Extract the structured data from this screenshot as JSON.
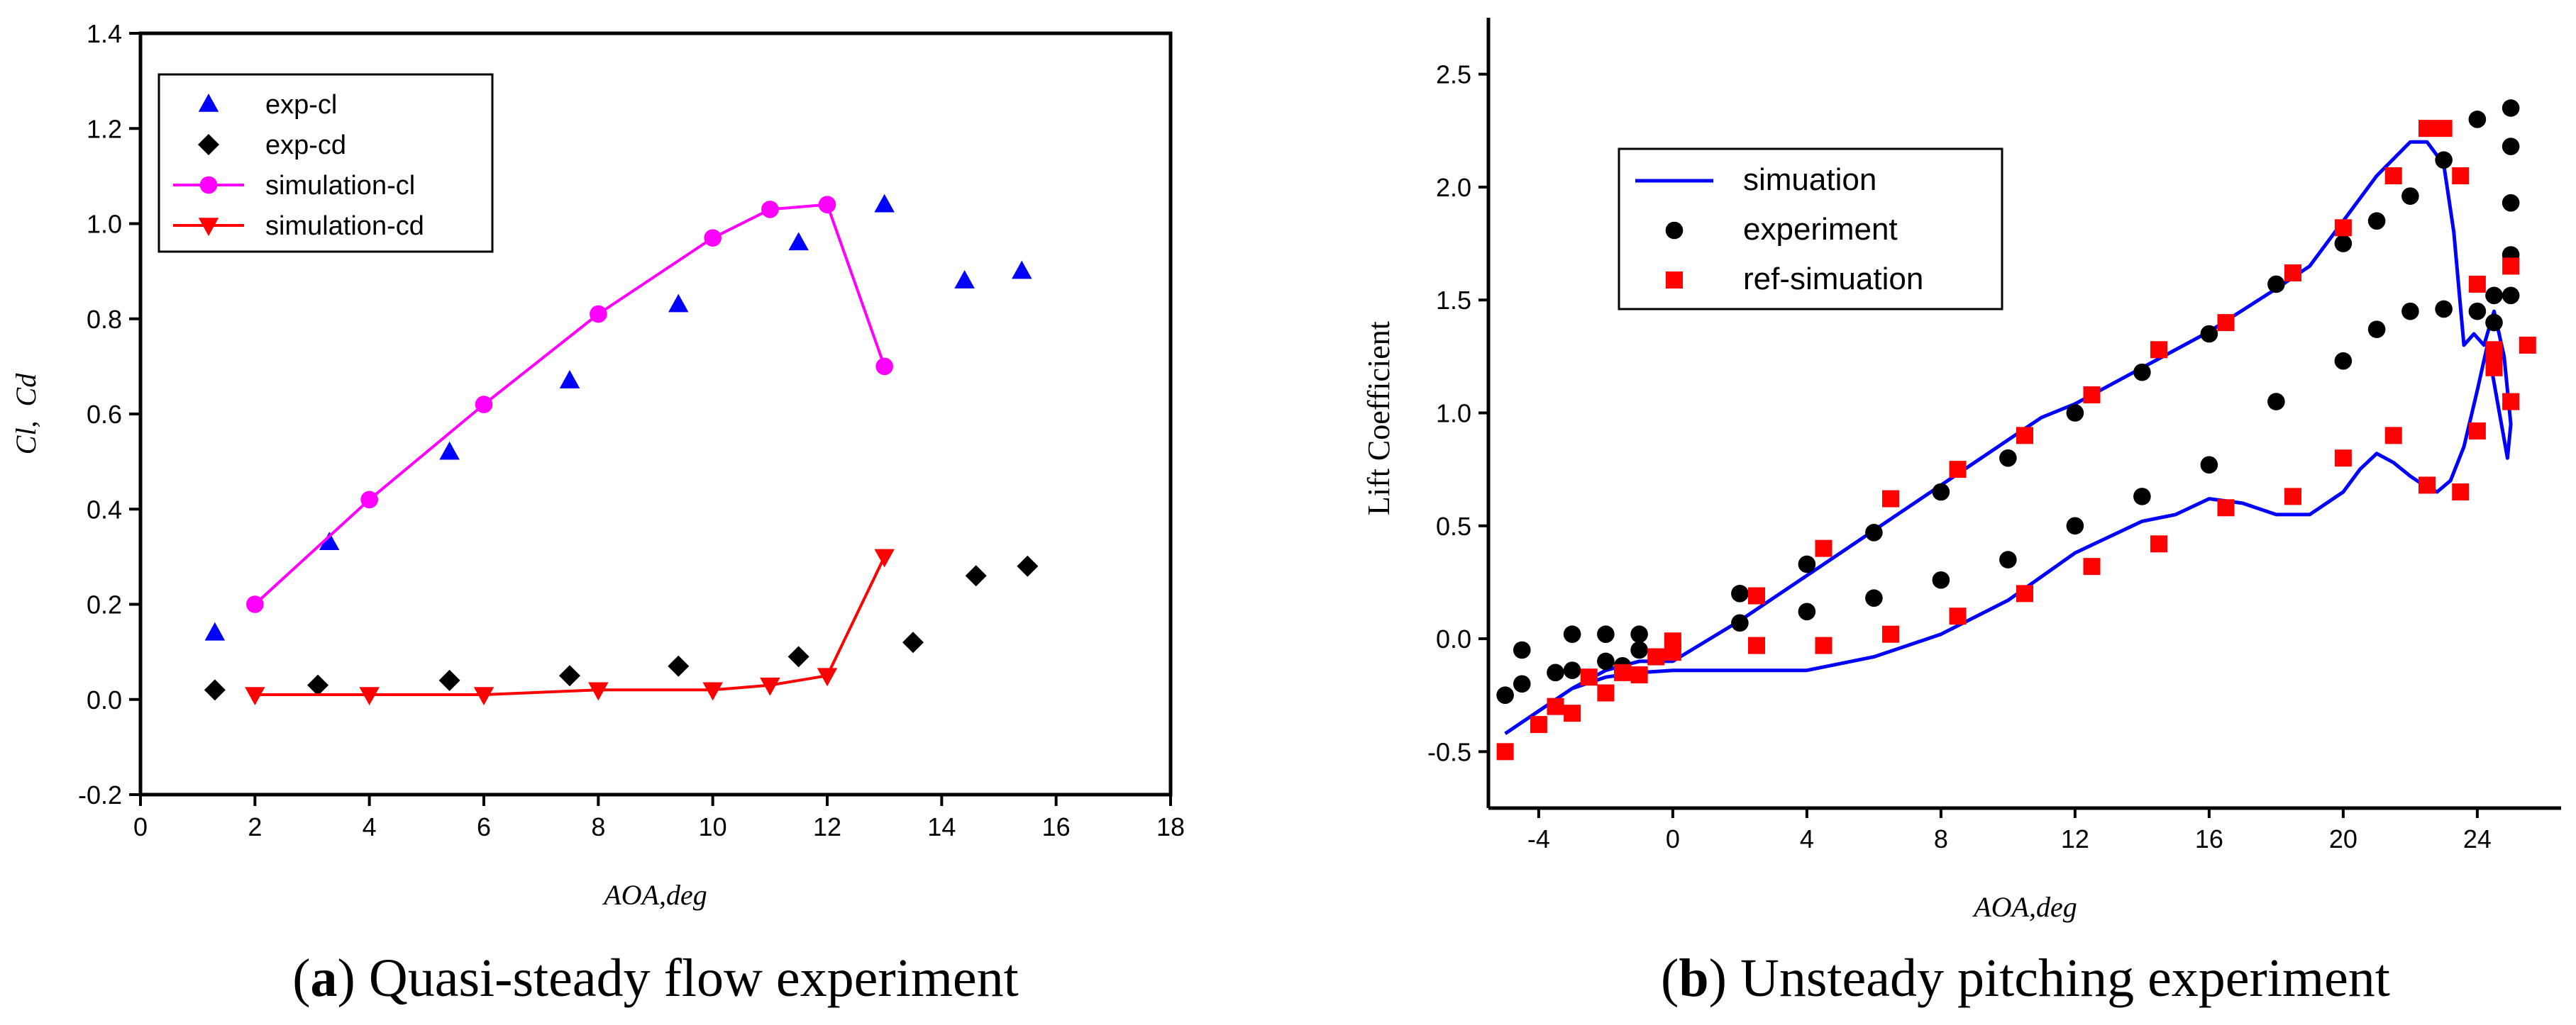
{
  "chart_data": [
    {
      "type": "scatter+line",
      "caption_label": "a",
      "caption_text": " Quasi-steady flow experiment",
      "xlabel": "AOA,deg",
      "ylabel_parts": [
        "Cl",
        ",  ",
        "Cd"
      ],
      "xlim": [
        0,
        18
      ],
      "ylim": [
        -0.2,
        1.4
      ],
      "xticks": [
        "0",
        "2",
        "4",
        "6",
        "8",
        "10",
        "12",
        "14",
        "16",
        "18"
      ],
      "yticks": [
        "-0.2",
        "0.0",
        "0.2",
        "0.4",
        "0.6",
        "0.8",
        "1.0",
        "1.2",
        "1.4"
      ],
      "legend_position": "top-left",
      "series": [
        {
          "name": "exp-cl",
          "marker": "triangle-up",
          "line": false,
          "color": "#0000ff",
          "x": [
            1.3,
            3.3,
            5.4,
            7.5,
            9.4,
            11.5,
            13.0,
            14.4,
            15.4
          ],
          "y": [
            0.14,
            0.33,
            0.52,
            0.67,
            0.83,
            0.96,
            1.04,
            0.88,
            0.9
          ]
        },
        {
          "name": "exp-cd",
          "marker": "diamond",
          "line": false,
          "color": "#000000",
          "x": [
            1.3,
            3.1,
            5.4,
            7.5,
            9.4,
            11.5,
            13.5,
            14.6,
            15.5
          ],
          "y": [
            0.02,
            0.03,
            0.04,
            0.05,
            0.07,
            0.09,
            0.12,
            0.26,
            0.28
          ]
        },
        {
          "name": "simulation-cl",
          "marker": "circle",
          "line": true,
          "color": "#ff00ff",
          "x": [
            2,
            4,
            6,
            8,
            10,
            11,
            12,
            13
          ],
          "y": [
            0.2,
            0.42,
            0.62,
            0.81,
            0.97,
            1.03,
            1.04,
            0.7
          ]
        },
        {
          "name": "simulation-cd",
          "marker": "triangle-down",
          "line": true,
          "color": "#ff0000",
          "x": [
            2,
            4,
            6,
            8,
            10,
            11,
            12,
            13
          ],
          "y": [
            0.01,
            0.01,
            0.01,
            0.02,
            0.02,
            0.03,
            0.05,
            0.3
          ]
        }
      ]
    },
    {
      "type": "scatter+line",
      "caption_label": "b",
      "caption_text": " Unsteady pitching experiment",
      "xlabel": "AOA,deg",
      "ylabel": "Lift Coefficient",
      "xlim": [
        -5.5,
        26.5
      ],
      "ylim": [
        -0.75,
        2.75
      ],
      "xticks": [
        "-4",
        "0",
        "4",
        "8",
        "12",
        "16",
        "20",
        "24"
      ],
      "yticks": [
        "-0.5",
        "0.0",
        "0.5",
        "1.0",
        "1.5",
        "2.0",
        "2.5"
      ],
      "legend_position": "top-left",
      "series": [
        {
          "name": "simuation",
          "marker": "none",
          "line": true,
          "color": "#0000ff",
          "x": [
            -5,
            -4,
            -3,
            -2,
            -1,
            0,
            2,
            4,
            6,
            8,
            10,
            11,
            12,
            14,
            16,
            18,
            19,
            20,
            21,
            22,
            22.5,
            23,
            23.3,
            23.6,
            23.9,
            24.2,
            24.5,
            24.8,
            25.0,
            24.9,
            24.6,
            24.3,
            24.0,
            23.6,
            23.2,
            22.8,
            22.4,
            22.0,
            21.5,
            21.0,
            20.5,
            20.0,
            19.0,
            18.0,
            17.0,
            16.0,
            15.0,
            14.0,
            12.0,
            10.0,
            8.0,
            6.0,
            4.0,
            2.0,
            0.0,
            -1.0,
            -2.0,
            -3.0,
            -4.0,
            -5.0
          ],
          "y": [
            -0.42,
            -0.32,
            -0.22,
            -0.14,
            -0.1,
            -0.1,
            0.08,
            0.28,
            0.48,
            0.68,
            0.88,
            0.98,
            1.04,
            1.2,
            1.36,
            1.55,
            1.65,
            1.85,
            2.05,
            2.2,
            2.2,
            2.1,
            1.8,
            1.3,
            1.35,
            1.3,
            1.45,
            1.25,
            0.95,
            0.8,
            1.05,
            1.3,
            1.1,
            0.85,
            0.7,
            0.65,
            0.68,
            0.72,
            0.78,
            0.82,
            0.75,
            0.65,
            0.55,
            0.55,
            0.6,
            0.62,
            0.55,
            0.52,
            0.38,
            0.17,
            0.02,
            -0.08,
            -0.14,
            -0.14,
            -0.14,
            -0.15,
            -0.17,
            -0.22,
            -0.32,
            -0.42
          ]
        },
        {
          "name": "experiment",
          "marker": "circle",
          "line": false,
          "color": "#000000",
          "x": [
            -5,
            -4.5,
            -4.5,
            -3.5,
            -3,
            -3,
            -2,
            -2,
            -1.5,
            -1,
            -1,
            2,
            2,
            4,
            4,
            6,
            6,
            8,
            8,
            10,
            10,
            12,
            12,
            14,
            14,
            16,
            16,
            18,
            18,
            20,
            20,
            21,
            21,
            22,
            22,
            23,
            23,
            24,
            24,
            24.5,
            24.5,
            25,
            25,
            25,
            25,
            25
          ],
          "y": [
            -0.25,
            -0.2,
            -0.05,
            -0.15,
            0.02,
            -0.14,
            0.02,
            -0.1,
            -0.12,
            0.02,
            -0.05,
            0.2,
            0.07,
            0.33,
            0.12,
            0.47,
            0.18,
            0.65,
            0.26,
            0.8,
            0.35,
            1.0,
            0.5,
            1.18,
            0.63,
            1.35,
            0.77,
            1.57,
            1.05,
            1.75,
            1.23,
            1.85,
            1.37,
            1.96,
            1.45,
            2.12,
            1.46,
            2.3,
            1.45,
            1.4,
            1.52,
            2.35,
            2.18,
            1.93,
            1.7,
            1.52
          ]
        },
        {
          "name": "ref-simuation",
          "marker": "square",
          "line": false,
          "color": "#ff0000",
          "x": [
            -5,
            -4,
            -3.5,
            -3,
            -2.5,
            -2,
            -1.5,
            -1,
            -0.5,
            0,
            0,
            2.5,
            2.5,
            4.5,
            4.5,
            6.5,
            6.5,
            8.5,
            8.5,
            10.5,
            10.5,
            12.5,
            12.5,
            14.5,
            14.5,
            16.5,
            16.5,
            18.5,
            18.5,
            20,
            20,
            21.5,
            21.5,
            22.5,
            22.5,
            23,
            23.5,
            23.5,
            24,
            24,
            24.5,
            24.5,
            24.5,
            25,
            25,
            25.5
          ],
          "y": [
            -0.5,
            -0.38,
            -0.3,
            -0.33,
            -0.17,
            -0.24,
            -0.15,
            -0.16,
            -0.08,
            -0.01,
            -0.06,
            0.19,
            -0.03,
            0.4,
            -0.03,
            0.62,
            0.02,
            0.75,
            0.1,
            0.9,
            0.2,
            1.08,
            0.32,
            1.28,
            0.42,
            1.4,
            0.58,
            1.62,
            0.63,
            1.82,
            0.8,
            2.05,
            0.9,
            2.26,
            0.68,
            2.26,
            2.05,
            0.65,
            1.57,
            0.92,
            1.28,
            1.22,
            1.2,
            1.65,
            1.05,
            1.3
          ]
        }
      ]
    }
  ]
}
